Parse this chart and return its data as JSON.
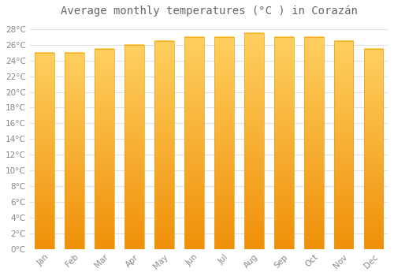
{
  "title": "Average monthly temperatures (°C ) in Corazán",
  "months": [
    "Jan",
    "Feb",
    "Mar",
    "Apr",
    "May",
    "Jun",
    "Jul",
    "Aug",
    "Sep",
    "Oct",
    "Nov",
    "Dec"
  ],
  "values": [
    25.0,
    25.0,
    25.5,
    26.0,
    26.5,
    27.0,
    27.0,
    27.5,
    27.0,
    27.0,
    26.5,
    25.5
  ],
  "ylim": [
    0,
    29
  ],
  "yticks": [
    0,
    2,
    4,
    6,
    8,
    10,
    12,
    14,
    16,
    18,
    20,
    22,
    24,
    26,
    28
  ],
  "ytick_labels": [
    "0°C",
    "2°C",
    "4°C",
    "6°C",
    "8°C",
    "10°C",
    "12°C",
    "14°C",
    "16°C",
    "18°C",
    "20°C",
    "22°C",
    "24°C",
    "26°C",
    "28°C"
  ],
  "background_color": "#FFFFFF",
  "grid_color": "#E0E0E8",
  "title_fontsize": 10,
  "tick_fontsize": 7.5,
  "bar_color_light": "#FFD060",
  "bar_color_dark": "#F0900A",
  "bar_edge_color": "#E8A010",
  "font_color": "#888888",
  "title_color": "#666666",
  "bar_width": 0.65
}
